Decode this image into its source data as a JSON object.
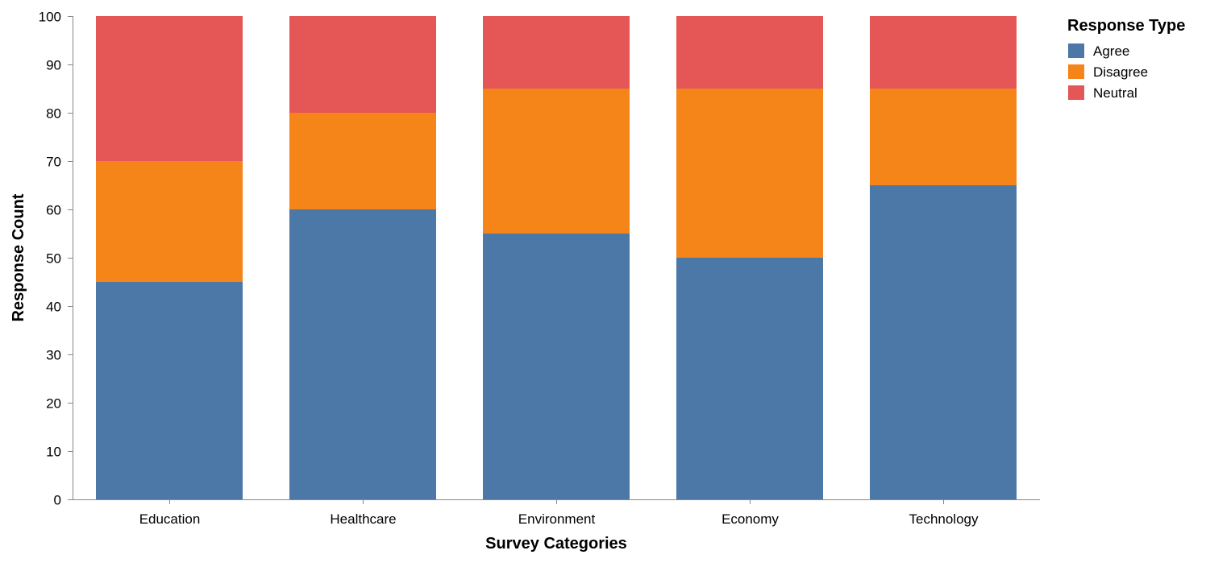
{
  "chart_data": {
    "type": "bar",
    "stacked": true,
    "categories": [
      "Education",
      "Healthcare",
      "Environment",
      "Economy",
      "Technology"
    ],
    "series": [
      {
        "name": "Agree",
        "color": "#4c78a8",
        "values": [
          45,
          60,
          55,
          50,
          65
        ]
      },
      {
        "name": "Disagree",
        "color": "#f58518",
        "values": [
          25,
          20,
          30,
          35,
          20
        ]
      },
      {
        "name": "Neutral",
        "color": "#e45756",
        "values": [
          30,
          20,
          15,
          15,
          15
        ]
      }
    ],
    "xlabel": "Survey Categories",
    "ylabel": "Response Count",
    "ylim": [
      0,
      100
    ],
    "yticks": [
      0,
      10,
      20,
      30,
      40,
      50,
      60,
      70,
      80,
      90,
      100
    ],
    "grid": false,
    "legend": {
      "title": "Response Type",
      "position": "top-right",
      "entries": [
        "Agree",
        "Disagree",
        "Neutral"
      ]
    },
    "axis_color": "#888888"
  }
}
